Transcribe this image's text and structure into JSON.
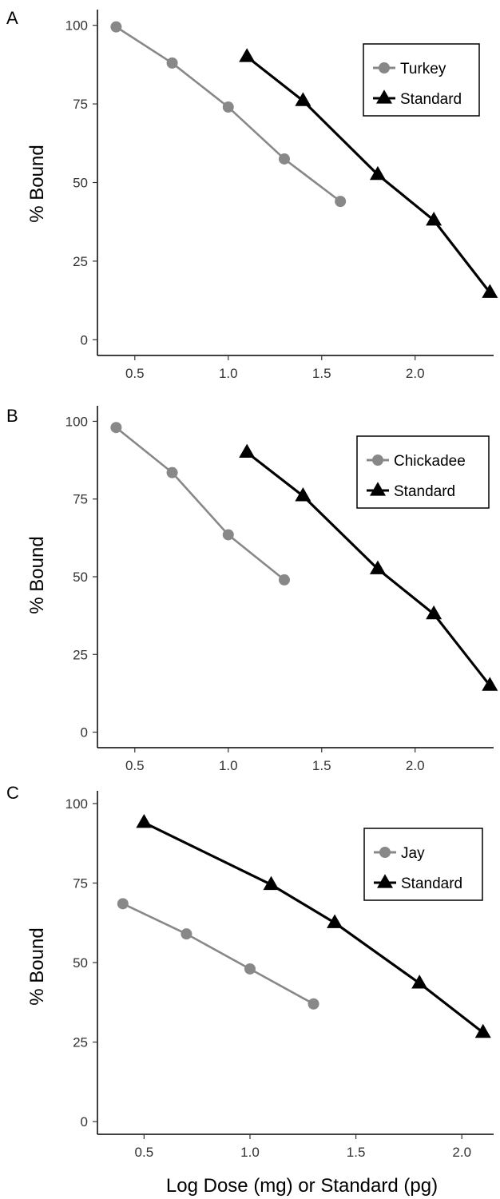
{
  "chart_data": [
    {
      "panel": "A",
      "type": "line",
      "ylabel": "% Bound",
      "xlabel": "",
      "xlim": [
        0.3,
        2.42
      ],
      "ylim": [
        -5,
        105
      ],
      "x_ticks": [
        "0.5",
        "1.0",
        "1.5",
        "2.0"
      ],
      "y_ticks": [
        "0",
        "25",
        "50",
        "75",
        "100"
      ],
      "legend_position": "top-right",
      "series": [
        {
          "name": "Turkey",
          "marker": "circle",
          "color": "#888888",
          "x": [
            0.4,
            0.7,
            1.0,
            1.3,
            1.6
          ],
          "y": [
            99.5,
            88,
            74,
            57.5,
            44
          ]
        },
        {
          "name": "Standard",
          "marker": "triangle",
          "color": "#000000",
          "x": [
            1.1,
            1.4,
            1.8,
            2.1,
            2.4
          ],
          "y": [
            90,
            76,
            52.5,
            38,
            15
          ]
        }
      ]
    },
    {
      "panel": "B",
      "type": "line",
      "ylabel": "% Bound",
      "xlabel": "",
      "xlim": [
        0.3,
        2.42
      ],
      "ylim": [
        -5,
        105
      ],
      "x_ticks": [
        "0.5",
        "1.0",
        "1.5",
        "2.0"
      ],
      "y_ticks": [
        "0",
        "25",
        "50",
        "75",
        "100"
      ],
      "legend_position": "top-right",
      "series": [
        {
          "name": "Chickadee",
          "marker": "circle",
          "color": "#888888",
          "x": [
            0.4,
            0.7,
            1.0,
            1.3
          ],
          "y": [
            98,
            83.5,
            63.5,
            49
          ]
        },
        {
          "name": "Standard",
          "marker": "triangle",
          "color": "#000000",
          "x": [
            1.1,
            1.4,
            1.8,
            2.1,
            2.4
          ],
          "y": [
            90,
            76,
            52.5,
            38,
            15
          ]
        }
      ]
    },
    {
      "panel": "C",
      "type": "line",
      "ylabel": "% Bound",
      "xlabel": "Log Dose (mg) or Standard (pg)",
      "xlim": [
        0.28,
        2.15
      ],
      "ylim": [
        -4,
        104
      ],
      "x_ticks": [
        "0.5",
        "1.0",
        "1.5",
        "2.0"
      ],
      "y_ticks": [
        "0",
        "25",
        "50",
        "75",
        "100"
      ],
      "legend_position": "top-right",
      "series": [
        {
          "name": "Jay",
          "marker": "circle",
          "color": "#888888",
          "x": [
            0.4,
            0.7,
            1.0,
            1.3
          ],
          "y": [
            68.5,
            59,
            48,
            37
          ]
        },
        {
          "name": "Standard",
          "marker": "triangle",
          "color": "#000000",
          "x": [
            0.5,
            1.1,
            1.4,
            1.8,
            2.1
          ],
          "y": [
            94,
            74.5,
            62.5,
            43.5,
            28
          ]
        }
      ]
    }
  ]
}
